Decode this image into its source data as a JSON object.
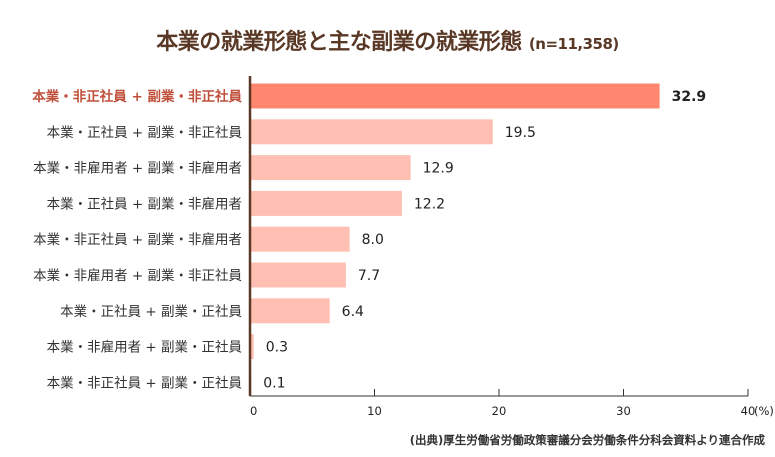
{
  "title": "本業の就業形態と主な副業の就業形態",
  "n_label": "(n=11,358)",
  "source": "(出典)厚生労働省労働政策審議分会労働条件分科会資料より連合作成",
  "colors": {
    "title": "#5a3826",
    "highlight_bar": "#ff8770",
    "bar": "#ffbfb3",
    "highlight_label": "#c0503c",
    "axis": "#5a3826"
  },
  "chart_data": {
    "type": "bar",
    "orientation": "horizontal",
    "title": "本業の就業形態と主な副業の就業形態 (n=11,358)",
    "categories": [
      "本業・非正社員 + 副業・非正社員",
      "本業・正社員 + 副業・非正社員",
      "本業・非雇用者 + 副業・非雇用者",
      "本業・正社員 + 副業・非雇用者",
      "本業・非正社員 + 副業・非雇用者",
      "本業・非雇用者 + 副業・非正社員",
      "本業・正社員 + 副業・正社員",
      "本業・非雇用者 + 副業・正社員",
      "本業・非正社員 + 副業・正社員"
    ],
    "values": [
      32.9,
      19.5,
      12.9,
      12.2,
      8.0,
      7.7,
      6.4,
      0.3,
      0.1
    ],
    "value_labels": [
      "32.9",
      "19.5",
      "12.9",
      "12.2",
      "8.0",
      "7.7",
      "6.4",
      "0.3",
      "0.1"
    ],
    "highlighted_index": 0,
    "xlim": [
      0,
      40
    ],
    "xticks": [
      "0",
      "10",
      "20",
      "30",
      "40"
    ],
    "xunit": "(%)",
    "grid": false
  }
}
